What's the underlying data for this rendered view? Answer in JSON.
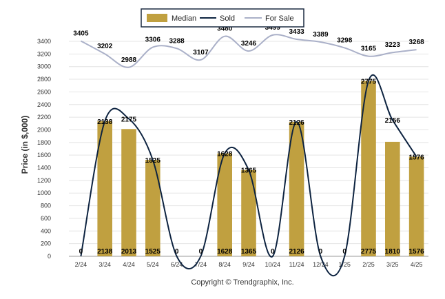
{
  "chart_data": {
    "type": "bar",
    "categories": [
      "2/24",
      "3/24",
      "4/24",
      "5/24",
      "6/24",
      "7/24",
      "8/24",
      "9/24",
      "10/24",
      "11/24",
      "12/24",
      "1/25",
      "2/25",
      "3/25",
      "4/25"
    ],
    "series": [
      {
        "name": "Median",
        "type": "bar",
        "color": "#c0a040",
        "values": [
          0,
          2138,
          2013,
          1525,
          0,
          0,
          1628,
          1365,
          0,
          2126,
          0,
          0,
          2775,
          1810,
          1576
        ]
      },
      {
        "name": "Sold",
        "type": "line",
        "color": "#0d2340",
        "values": [
          0,
          2138,
          2175,
          1525,
          0,
          0,
          1628,
          1365,
          0,
          2126,
          0,
          0,
          2775,
          2156,
          1576
        ]
      },
      {
        "name": "For Sale",
        "type": "line",
        "color": "#aab0c8",
        "values": [
          3405,
          3202,
          2988,
          3306,
          3288,
          3107,
          3480,
          3246,
          3499,
          3433,
          3389,
          3298,
          3165,
          3223,
          3268
        ]
      }
    ],
    "ylabel": "Price (in $,000)",
    "ylim": [
      0,
      3400
    ],
    "yticks": [
      0,
      200,
      400,
      600,
      800,
      1000,
      1200,
      1400,
      1600,
      1800,
      2000,
      2200,
      2400,
      2600,
      2800,
      3000,
      3200,
      3400
    ],
    "legend_position": "top-center",
    "grid": true
  },
  "footer": {
    "credit": "Copyright © Trendgraphix, Inc."
  }
}
